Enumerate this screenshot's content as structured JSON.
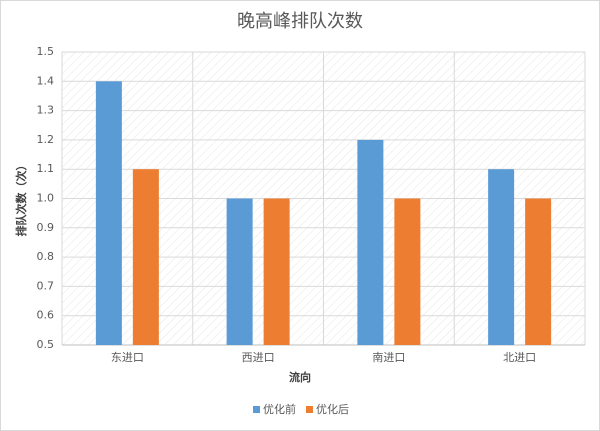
{
  "chart_data": {
    "type": "bar",
    "title": "晚高峰排队次数",
    "x_label": "流向",
    "y_label": "排队次数（次）",
    "categories": [
      "东进口",
      "西进口",
      "南进口",
      "北进口"
    ],
    "series": [
      {
        "name": "优化前",
        "color": "#5b9bd5",
        "values": [
          1.4,
          1.0,
          1.2,
          1.1
        ]
      },
      {
        "name": "优化后",
        "color": "#ed7d31",
        "values": [
          1.1,
          1.0,
          1.0,
          1.0
        ]
      }
    ],
    "ylim": [
      0.5,
      1.5
    ],
    "yticks": [
      0.5,
      0.6,
      0.7,
      0.8,
      0.9,
      {
        "value": 1,
        "label": "1.0"
      },
      1.1,
      1.2,
      1.3,
      1.4,
      1.5
    ],
    "grid": true,
    "legend": "bottom"
  }
}
